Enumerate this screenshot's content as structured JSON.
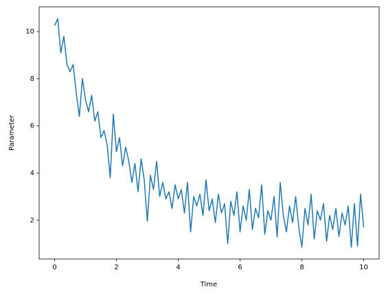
{
  "chart_data": {
    "type": "line",
    "xlabel": "Time",
    "ylabel": "Parameter",
    "x": [
      0.0,
      0.1,
      0.2,
      0.3,
      0.4,
      0.5,
      0.6,
      0.7,
      0.8,
      0.9,
      1.0,
      1.1,
      1.2,
      1.3,
      1.4,
      1.5,
      1.6,
      1.7,
      1.8,
      1.9,
      2.0,
      2.1,
      2.2,
      2.3,
      2.4,
      2.5,
      2.6,
      2.7,
      2.8,
      2.9,
      3.0,
      3.1,
      3.2,
      3.3,
      3.4,
      3.5,
      3.6,
      3.7,
      3.8,
      3.9,
      4.0,
      4.1,
      4.2,
      4.3,
      4.4,
      4.5,
      4.6,
      4.7,
      4.8,
      4.9,
      5.0,
      5.1,
      5.2,
      5.3,
      5.4,
      5.5,
      5.6,
      5.7,
      5.8,
      5.9,
      6.0,
      6.1,
      6.2,
      6.3,
      6.4,
      6.5,
      6.6,
      6.7,
      6.8,
      6.9,
      7.0,
      7.1,
      7.2,
      7.3,
      7.4,
      7.5,
      7.6,
      7.7,
      7.8,
      7.9,
      8.0,
      8.1,
      8.2,
      8.3,
      8.4,
      8.5,
      8.6,
      8.7,
      8.8,
      8.9,
      9.0,
      9.1,
      9.2,
      9.3,
      9.4,
      9.5,
      9.6,
      9.7,
      9.8,
      9.9,
      10.0
    ],
    "series": [
      {
        "color": "#1f77b4",
        "values": [
          10.25,
          10.55,
          9.1,
          9.8,
          8.6,
          8.3,
          8.6,
          7.4,
          6.4,
          8.0,
          7.1,
          6.6,
          7.3,
          6.2,
          6.6,
          5.5,
          5.8,
          5.2,
          3.8,
          6.5,
          4.9,
          5.5,
          4.3,
          5.1,
          4.5,
          3.6,
          4.4,
          3.2,
          4.6,
          3.7,
          1.95,
          3.9,
          3.3,
          4.5,
          3.0,
          3.6,
          2.9,
          3.2,
          2.5,
          3.5,
          2.9,
          3.3,
          2.3,
          3.6,
          1.5,
          3.0,
          2.6,
          3.1,
          2.2,
          3.7,
          2.4,
          2.9,
          1.9,
          3.1,
          2.3,
          2.7,
          1.0,
          2.8,
          2.2,
          3.2,
          1.5,
          2.6,
          2.0,
          3.3,
          1.6,
          2.5,
          2.1,
          3.5,
          1.4,
          2.4,
          2.0,
          3.0,
          1.3,
          3.6,
          2.2,
          1.5,
          2.6,
          1.9,
          3.0,
          1.7,
          0.85,
          2.5,
          1.8,
          3.1,
          1.2,
          2.4,
          2.0,
          2.7,
          1.1,
          2.2,
          1.6,
          2.5,
          1.3,
          2.3,
          1.8,
          2.6,
          0.85,
          2.7,
          0.9,
          3.1,
          1.7
        ]
      }
    ],
    "xlim": [
      -0.5,
      10.5
    ],
    "ylim": [
      0.35,
      11.05
    ],
    "xticks": [
      0,
      2,
      4,
      6,
      8,
      10
    ],
    "yticks": [
      2,
      4,
      6,
      8,
      10
    ]
  }
}
